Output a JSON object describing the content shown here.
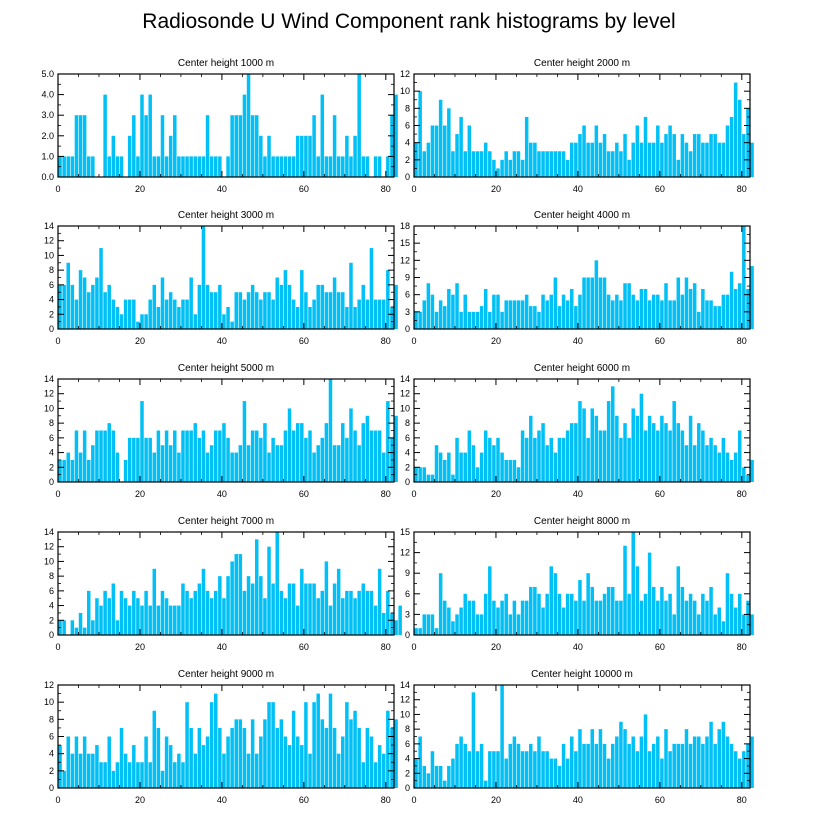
{
  "title": "Radiosonde U Wind Component rank histograms by level",
  "colors": {
    "bar": "#00c0f6",
    "axis": "#000000"
  },
  "chart_data": [
    {
      "type": "bar",
      "title": "Center height 1000 m",
      "xlim": [
        0,
        82
      ],
      "xticks": [
        0,
        20,
        40,
        60,
        80
      ],
      "ylim": [
        0,
        5
      ],
      "yticks": [
        "0.0",
        "1.0",
        "2.0",
        "3.0",
        "4.0",
        "5.0"
      ],
      "ytick_side": "left",
      "values": [
        1,
        1,
        1,
        1,
        3,
        3,
        3,
        1,
        1,
        0,
        0,
        4,
        1,
        2,
        1,
        1,
        0,
        2,
        3,
        1,
        4,
        3,
        4,
        1,
        1,
        3,
        1,
        2,
        3,
        1,
        1,
        1,
        1,
        1,
        1,
        1,
        3,
        1,
        1,
        1,
        0,
        1,
        3,
        3,
        3,
        4,
        5,
        3,
        3,
        2,
        1,
        2,
        1,
        1,
        1,
        1,
        1,
        1,
        2,
        2,
        2,
        2,
        3,
        1,
        4,
        1,
        1,
        3,
        1,
        1,
        2,
        1,
        2,
        5,
        1,
        1,
        0,
        1,
        1,
        0,
        1,
        3,
        4
      ]
    },
    {
      "type": "bar",
      "title": "Center height 2000 m",
      "xlim": [
        0,
        82
      ],
      "xticks": [
        0,
        20,
        40,
        60,
        80
      ],
      "ylim": [
        0,
        12
      ],
      "yticks": [
        "0",
        "2",
        "4",
        "6",
        "8",
        "10",
        "12"
      ],
      "ytick_side": "left",
      "values": [
        4,
        10,
        3,
        4,
        6,
        6,
        9,
        6,
        8,
        3,
        5,
        7,
        3,
        6,
        3,
        3,
        3,
        4,
        3,
        2,
        1,
        2,
        3,
        2,
        3,
        3,
        2,
        7,
        4,
        4,
        3,
        3,
        3,
        3,
        3,
        3,
        3,
        2,
        4,
        4,
        5,
        6,
        4,
        4,
        6,
        4,
        5,
        3,
        3,
        4,
        3,
        5,
        2,
        4,
        6,
        4,
        7,
        4,
        4,
        6,
        4,
        5,
        6,
        5,
        2,
        5,
        4,
        3,
        5,
        5,
        4,
        4,
        5,
        5,
        4,
        4,
        6,
        7,
        11,
        9,
        5,
        8,
        4
      ]
    },
    {
      "type": "bar",
      "title": "Center height 3000 m",
      "xlim": [
        0,
        82
      ],
      "xticks": [
        0,
        20,
        40,
        60,
        80
      ],
      "ylim": [
        0,
        14
      ],
      "yticks": [
        "0",
        "2",
        "4",
        "6",
        "8",
        "10",
        "12",
        "14"
      ],
      "ytick_side": "left",
      "values": [
        6,
        6,
        9,
        6,
        4,
        8,
        7,
        5,
        6,
        7,
        11,
        5,
        6,
        4,
        3,
        2,
        4,
        4,
        4,
        1,
        2,
        2,
        4,
        6,
        3,
        7,
        4,
        5,
        4,
        3,
        4,
        4,
        7,
        2,
        6,
        14,
        6,
        5,
        5,
        6,
        2,
        3,
        1,
        5,
        5,
        4,
        5,
        6,
        5,
        4,
        5,
        5,
        4,
        7,
        6,
        8,
        6,
        4,
        3,
        8,
        5,
        3,
        4,
        6,
        6,
        5,
        5,
        7,
        5,
        5,
        3,
        9,
        3,
        4,
        6,
        4,
        11,
        4,
        4,
        4,
        8,
        3,
        6
      ]
    },
    {
      "type": "bar",
      "title": "Center height 4000 m",
      "xlim": [
        0,
        82
      ],
      "xticks": [
        0,
        20,
        40,
        60,
        80
      ],
      "ylim": [
        0,
        18
      ],
      "yticks": [
        "0",
        "3",
        "6",
        "9",
        "12",
        "15",
        "18"
      ],
      "ytick_side": "left",
      "values": [
        3,
        3,
        5,
        8,
        6,
        3,
        5,
        4,
        7,
        6,
        8,
        3,
        6,
        3,
        3,
        3,
        4,
        7,
        3,
        6,
        6,
        3,
        5,
        5,
        5,
        5,
        5,
        6,
        4,
        4,
        3,
        6,
        5,
        6,
        9,
        4,
        6,
        5,
        7,
        4,
        6,
        9,
        9,
        9,
        12,
        9,
        9,
        6,
        5,
        6,
        5,
        8,
        8,
        6,
        5,
        7,
        7,
        5,
        6,
        6,
        5,
        8,
        5,
        5,
        9,
        6,
        9,
        7,
        8,
        3,
        7,
        5,
        5,
        4,
        4,
        6,
        6,
        10,
        7,
        8,
        18,
        7,
        11
      ]
    },
    {
      "type": "bar",
      "title": "Center height 5000 m",
      "xlim": [
        0,
        82
      ],
      "xticks": [
        0,
        20,
        40,
        60,
        80
      ],
      "ylim": [
        0,
        14
      ],
      "yticks": [
        "0",
        "2",
        "4",
        "6",
        "8",
        "10",
        "12",
        "14"
      ],
      "ytick_side": "left",
      "values": [
        3,
        3,
        4,
        3,
        7,
        4,
        7,
        3,
        5,
        7,
        7,
        7,
        8,
        7,
        4,
        0,
        3,
        6,
        6,
        6,
        11,
        6,
        6,
        4,
        7,
        5,
        7,
        5,
        7,
        4,
        7,
        7,
        7,
        8,
        6,
        7,
        4,
        5,
        7,
        7,
        8,
        6,
        4,
        4,
        5,
        11,
        5,
        7,
        7,
        6,
        8,
        4,
        6,
        5,
        5,
        7,
        10,
        7,
        8,
        8,
        6,
        7,
        4,
        5,
        6,
        8,
        14,
        5,
        5,
        8,
        6,
        10,
        7,
        5,
        8,
        9,
        7,
        7,
        7,
        4,
        11,
        6,
        9
      ]
    },
    {
      "type": "bar",
      "title": "Center height 6000 m",
      "xlim": [
        0,
        82
      ],
      "xticks": [
        0,
        20,
        40,
        60,
        80
      ],
      "ylim": [
        0,
        14
      ],
      "yticks": [
        "0",
        "2",
        "4",
        "6",
        "8",
        "10",
        "12",
        "14"
      ],
      "ytick_side": "left",
      "values": [
        2,
        2,
        2,
        1,
        1,
        5,
        4,
        3,
        4,
        1,
        6,
        4,
        4,
        7,
        5,
        2,
        4,
        7,
        6,
        5,
        6,
        4,
        3,
        3,
        3,
        2,
        7,
        6,
        9,
        6,
        7,
        8,
        5,
        6,
        4,
        6,
        6,
        7,
        8,
        8,
        11,
        10,
        6,
        10,
        9,
        7,
        7,
        11,
        13,
        9,
        6,
        8,
        6,
        10,
        9,
        12,
        7,
        9,
        8,
        7,
        9,
        8,
        7,
        11,
        8,
        7,
        5,
        9,
        5,
        8,
        7,
        5,
        6,
        5,
        4,
        6,
        4,
        3,
        4,
        7,
        2,
        1,
        3
      ]
    },
    {
      "type": "bar",
      "title": "Center height 7000 m",
      "xlim": [
        0,
        82
      ],
      "xticks": [
        0,
        20,
        40,
        60,
        80
      ],
      "ylim": [
        0,
        14
      ],
      "yticks": [
        "0",
        "2",
        "4",
        "6",
        "8",
        "10",
        "12",
        "14"
      ],
      "ytick_side": "left",
      "values": [
        2,
        2,
        0,
        2,
        1,
        3,
        1,
        6,
        2,
        5,
        4,
        6,
        5,
        7,
        2,
        6,
        5,
        4,
        6,
        5,
        4,
        6,
        4,
        9,
        4,
        6,
        5,
        4,
        4,
        4,
        7,
        6,
        5,
        6,
        7,
        9,
        6,
        5,
        6,
        8,
        5,
        8,
        10,
        11,
        11,
        6,
        8,
        7,
        13,
        8,
        5,
        12,
        7,
        14,
        6,
        5,
        7,
        7,
        4,
        9,
        7,
        7,
        7,
        5,
        6,
        10,
        4,
        7,
        9,
        5,
        6,
        6,
        5,
        6,
        7,
        6,
        6,
        4,
        9,
        3,
        6,
        3,
        2,
        4
      ]
    },
    {
      "type": "bar",
      "title": "Center height 8000 m",
      "xlim": [
        0,
        82
      ],
      "xticks": [
        0,
        20,
        40,
        60,
        80
      ],
      "ylim": [
        0,
        15
      ],
      "yticks": [
        "0",
        "3",
        "6",
        "9",
        "12",
        "15"
      ],
      "ytick_side": "left",
      "values": [
        1,
        1,
        3,
        3,
        3,
        1,
        9,
        5,
        4,
        2,
        3,
        4,
        6,
        5,
        5,
        3,
        3,
        6,
        10,
        5,
        4,
        5,
        6,
        3,
        5,
        3,
        5,
        5,
        7,
        7,
        6,
        4,
        6,
        10,
        9,
        6,
        4,
        6,
        6,
        5,
        8,
        5,
        9,
        7,
        5,
        5,
        6,
        7,
        7,
        5,
        5,
        13,
        6,
        15,
        10,
        5,
        6,
        12,
        7,
        5,
        7,
        5,
        6,
        3,
        10,
        7,
        5,
        6,
        5,
        3,
        6,
        5,
        7,
        3,
        4,
        2,
        9,
        6,
        4,
        6,
        3,
        5,
        3
      ]
    },
    {
      "type": "bar",
      "title": "Center height 9000 m",
      "xlim": [
        0,
        82
      ],
      "xticks": [
        0,
        20,
        40,
        60,
        80
      ],
      "ylim": [
        0,
        12
      ],
      "yticks": [
        "0",
        "2",
        "4",
        "6",
        "8",
        "10",
        "12"
      ],
      "ytick_side": "left",
      "values": [
        5,
        2,
        6,
        4,
        6,
        4,
        6,
        4,
        4,
        5,
        3,
        3,
        6,
        2,
        3,
        7,
        4,
        3,
        5,
        3,
        3,
        6,
        3,
        9,
        7,
        2,
        6,
        5,
        3,
        4,
        3,
        10,
        7,
        4,
        7,
        5,
        6,
        10,
        11,
        7,
        4,
        6,
        7,
        8,
        8,
        7,
        4,
        8,
        4,
        6,
        8,
        10,
        10,
        7,
        8,
        6,
        5,
        9,
        6,
        5,
        10,
        4,
        10,
        11,
        8,
        7,
        11,
        7,
        4,
        6,
        10,
        8,
        9,
        7,
        3,
        7,
        6,
        3,
        5,
        4,
        9,
        7,
        8
      ]
    },
    {
      "type": "bar",
      "title": "Center height 10000 m",
      "xlim": [
        0,
        82
      ],
      "xticks": [
        0,
        20,
        40,
        60,
        80
      ],
      "ylim": [
        0,
        14
      ],
      "yticks": [
        "0",
        "2",
        "4",
        "6",
        "8",
        "10",
        "12",
        "14"
      ],
      "ytick_side": "left",
      "values": [
        4,
        7,
        3,
        2,
        5,
        3,
        3,
        1,
        3,
        4,
        6,
        7,
        6,
        5,
        13,
        5,
        6,
        1,
        5,
        5,
        5,
        14,
        4,
        6,
        7,
        6,
        5,
        5,
        6,
        5,
        7,
        5,
        5,
        4,
        4,
        3,
        6,
        4,
        7,
        5,
        8,
        6,
        6,
        8,
        6,
        8,
        6,
        4,
        6,
        7,
        9,
        8,
        6,
        7,
        5,
        7,
        10,
        5,
        6,
        7,
        4,
        8,
        5,
        6,
        6,
        6,
        8,
        6,
        7,
        7,
        6,
        7,
        9,
        6,
        8,
        9,
        7,
        6,
        5,
        4,
        5,
        6,
        7
      ]
    }
  ]
}
